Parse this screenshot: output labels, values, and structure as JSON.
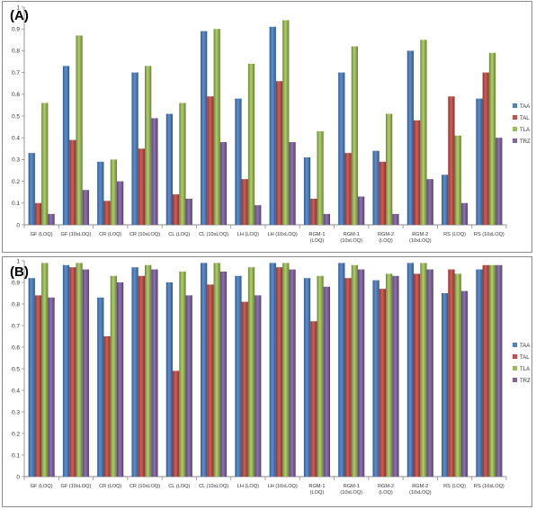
{
  "chart_data": [
    {
      "type": "bar",
      "title": "(A)",
      "categories": [
        "GF (LOQ)",
        "GF (10xLOQ)",
        "CR (LOQ)",
        "CR (10xLOQ)",
        "CL (LOQ)",
        "CL (10xLOQ)",
        "LH (LOQ)",
        "LH (10xLOQ)",
        "RGM-1\n(LOQ)",
        "RGM-1\n(10xLOQ)",
        "RGM-2\n(LOQ)",
        "RGM-2\n(10xLOQ)",
        "RS (LOQ)",
        "RS (10xLOQ)"
      ],
      "ylim": [
        0,
        1
      ],
      "yticks": [
        "0",
        "0.1",
        "0.2",
        "0.3",
        "0.4",
        "0.5",
        "0.6",
        "0.7",
        "0.8",
        "0.9",
        "1"
      ],
      "legend_position": "right",
      "series": [
        {
          "name": "TAA",
          "color": "#4f81bd",
          "values": [
            0.33,
            0.73,
            0.29,
            0.7,
            0.51,
            0.89,
            0.58,
            0.91,
            0.31,
            0.7,
            0.34,
            0.8,
            0.23,
            0.58
          ]
        },
        {
          "name": "TAL",
          "color": "#c0504d",
          "values": [
            0.1,
            0.39,
            0.11,
            0.35,
            0.14,
            0.59,
            0.21,
            0.66,
            0.12,
            0.33,
            0.29,
            0.48,
            0.59,
            0.7
          ]
        },
        {
          "name": "TLA",
          "color": "#9bbb59",
          "values": [
            0.56,
            0.87,
            0.3,
            0.73,
            0.56,
            0.9,
            0.74,
            0.94,
            0.43,
            0.82,
            0.51,
            0.85,
            0.41,
            0.79
          ]
        },
        {
          "name": "TRZ",
          "color": "#8064a2",
          "values": [
            0.05,
            0.16,
            0.2,
            0.49,
            0.12,
            0.38,
            0.09,
            0.38,
            0.05,
            0.13,
            0.05,
            0.21,
            0.1,
            0.4
          ]
        }
      ]
    },
    {
      "type": "bar",
      "title": "(B)",
      "categories": [
        "GF (LOQ)",
        "GF (10xLOQ)",
        "CR (LOQ)",
        "CR (10xLOQ)",
        "CL (LOQ)",
        "CL (10xLOQ)",
        "LH (LOQ)",
        "LH (10xLOQ)",
        "RGM-1\n(LOQ)",
        "RGM-1\n(10xLOQ)",
        "RGM-2\n(LOQ)",
        "RGM-2\n(10xLOQ)",
        "RS (LOQ)",
        "RS (10xLOQ)"
      ],
      "ylim": [
        0,
        1
      ],
      "yticks": [
        "0",
        "0.1",
        "0.2",
        "0.3",
        "0.4",
        "0.5",
        "0.6",
        "0.7",
        "0.8",
        "0.9",
        "1"
      ],
      "legend_position": "right",
      "series": [
        {
          "name": "TAA",
          "color": "#4f81bd",
          "values": [
            0.92,
            0.98,
            0.83,
            0.97,
            0.9,
            0.99,
            0.93,
            0.99,
            0.92,
            0.99,
            0.91,
            0.99,
            0.85,
            0.96
          ]
        },
        {
          "name": "TAL",
          "color": "#c0504d",
          "values": [
            0.84,
            0.97,
            0.65,
            0.93,
            0.49,
            0.89,
            0.81,
            0.97,
            0.72,
            0.92,
            0.87,
            0.94,
            0.96,
            0.98
          ]
        },
        {
          "name": "TLA",
          "color": "#9bbb59",
          "values": [
            0.99,
            0.99,
            0.93,
            0.98,
            0.95,
            0.99,
            0.97,
            0.99,
            0.93,
            0.98,
            0.94,
            0.99,
            0.94,
            0.98
          ]
        },
        {
          "name": "TRZ",
          "color": "#8064a2",
          "values": [
            0.83,
            0.96,
            0.9,
            0.96,
            0.84,
            0.95,
            0.84,
            0.96,
            0.88,
            0.96,
            0.93,
            0.96,
            0.86,
            0.98
          ]
        }
      ]
    }
  ]
}
